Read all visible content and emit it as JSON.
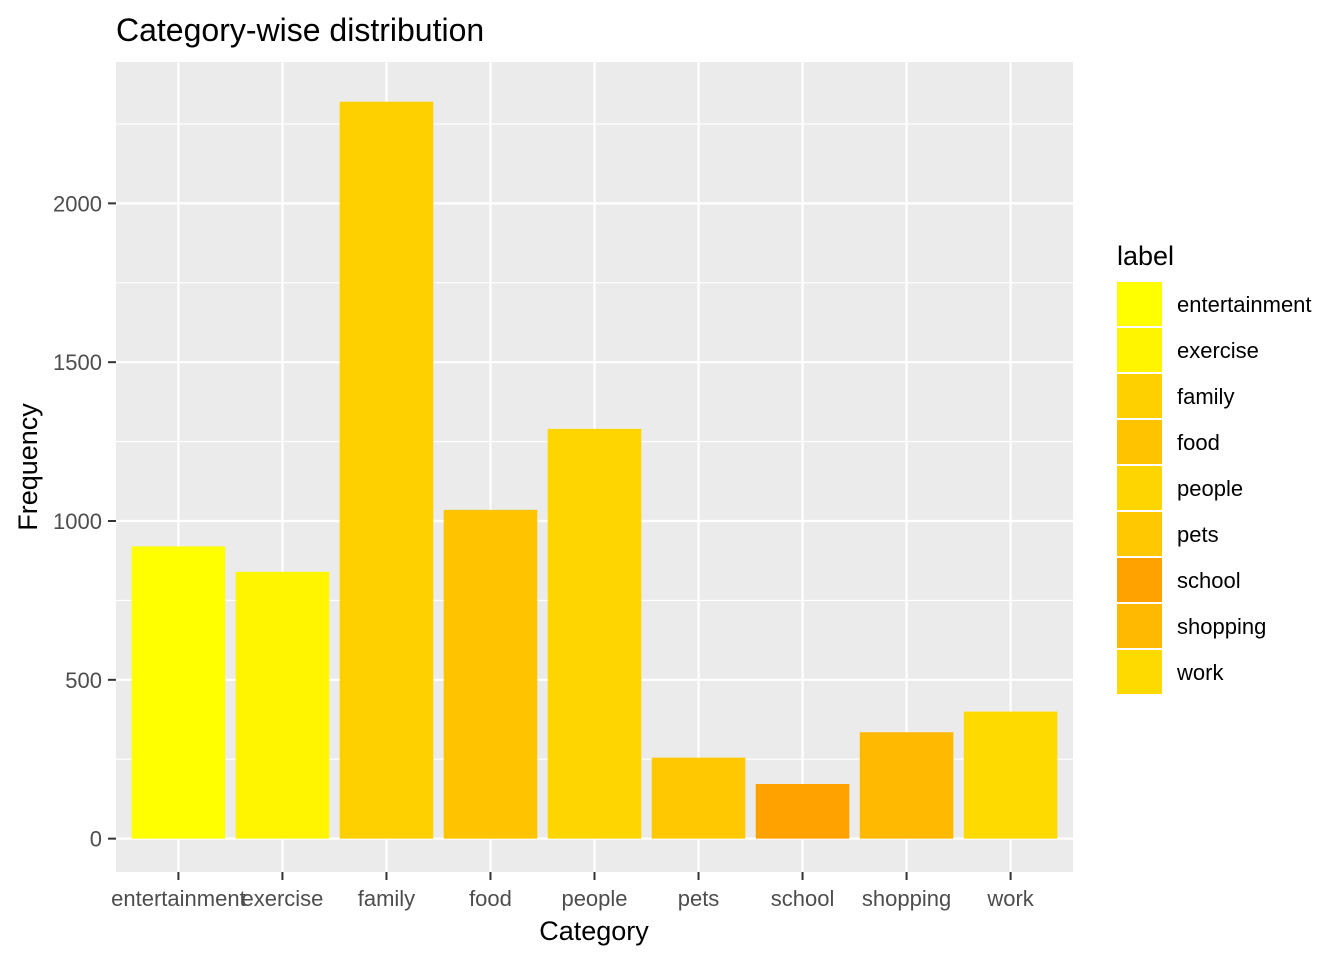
{
  "chart_data": {
    "type": "bar",
    "title": "Category-wise distribution",
    "xlabel": "Category",
    "ylabel": "Frequency",
    "categories": [
      "entertainment",
      "exercise",
      "family",
      "food",
      "people",
      "pets",
      "school",
      "shopping",
      "work"
    ],
    "values": [
      920,
      840,
      2320,
      1035,
      1290,
      255,
      172,
      335,
      400
    ],
    "colors": [
      "#FFFF00",
      "#FFF500",
      "#FFD000",
      "#FFC300",
      "#FFD500",
      "#FFC800",
      "#FFA200",
      "#FFB900",
      "#FFDA00"
    ],
    "ylim": [
      -105,
      2445
    ],
    "yticks": [
      0,
      500,
      1000,
      1500,
      2000
    ],
    "ytick_labels": [
      "0",
      "500",
      "1000",
      "1500",
      "2000"
    ],
    "grid": true,
    "panel_background": "#EBEBEB",
    "legend": {
      "title": "label",
      "position": "right",
      "entries": [
        "entertainment",
        "exercise",
        "family",
        "food",
        "people",
        "pets",
        "school",
        "shopping",
        "work"
      ]
    }
  }
}
